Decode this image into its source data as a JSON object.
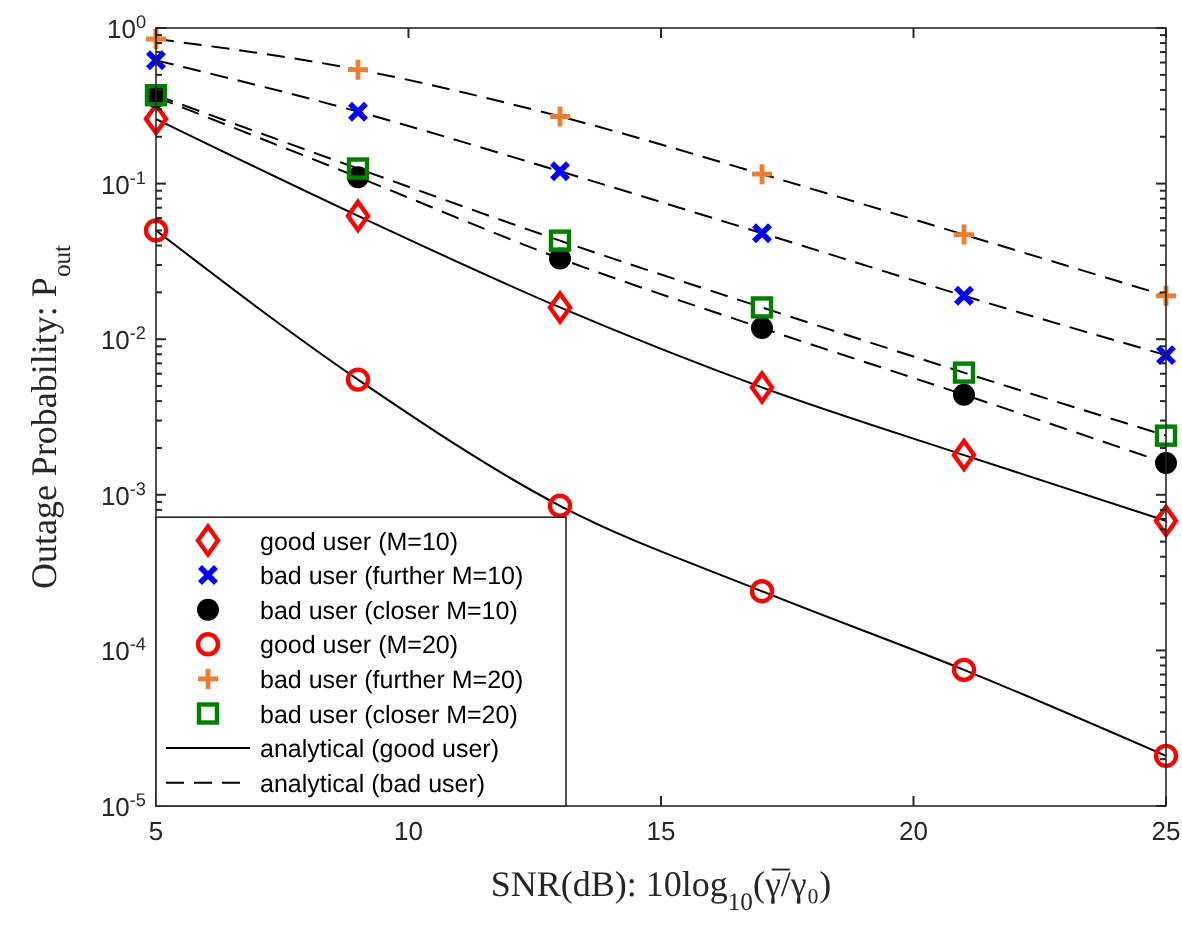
{
  "chart_data": {
    "type": "scatter",
    "xlabel": "SNR(dB): 10log$_{10}$(γ̅/γ₀)",
    "ylabel": "Outage Probability: P$_{out}$",
    "log": "y",
    "grid": false,
    "legend": "bottom left",
    "x": [
      5,
      9,
      13,
      17,
      21,
      25
    ],
    "xlim": [
      5,
      25
    ],
    "xticks": [
      5,
      10,
      15,
      20,
      25
    ],
    "ylim": [
      1e-05,
      1
    ],
    "yticks": [
      {
        "value": 1e-05,
        "label": "10$^{-5}$"
      },
      {
        "value": 2e-05,
        "label": null
      },
      {
        "value": 3e-05,
        "label": null
      },
      {
        "value": 4e-05,
        "label": null
      },
      {
        "value": 5e-05,
        "label": null
      },
      {
        "value": 6e-05,
        "label": null
      },
      {
        "value": 7e-05,
        "label": null
      },
      {
        "value": 8e-05,
        "label": null
      },
      {
        "value": 9e-05,
        "label": null
      },
      {
        "value": 0.0001,
        "label": "10$^{-4}$"
      },
      {
        "value": 0.0002,
        "label": null
      },
      {
        "value": 0.0003,
        "label": null
      },
      {
        "value": 0.0004,
        "label": null
      },
      {
        "value": 0.0005,
        "label": null
      },
      {
        "value": 0.0006,
        "label": null
      },
      {
        "value": 0.0007,
        "label": null
      },
      {
        "value": 0.0008,
        "label": null
      },
      {
        "value": 0.0009,
        "label": null
      },
      {
        "value": 0.001,
        "label": "10$^{-3}$"
      },
      {
        "value": 0.002,
        "label": null
      },
      {
        "value": 0.003,
        "label": null
      },
      {
        "value": 0.004,
        "label": null
      },
      {
        "value": 0.005,
        "label": null
      },
      {
        "value": 0.006,
        "label": null
      },
      {
        "value": 0.007,
        "label": null
      },
      {
        "value": 0.008,
        "label": null
      },
      {
        "value": 0.009,
        "label": null
      },
      {
        "value": 0.01,
        "label": "10$^{-2}$"
      },
      {
        "value": 0.02,
        "label": null
      },
      {
        "value": 0.03,
        "label": null
      },
      {
        "value": 0.04,
        "label": null
      },
      {
        "value": 0.05,
        "label": null
      },
      {
        "value": 0.06,
        "label": null
      },
      {
        "value": 0.07,
        "label": null
      },
      {
        "value": 0.08,
        "label": null
      },
      {
        "value": 0.09,
        "label": null
      },
      {
        "value": 0.1,
        "label": "10$^{-1}$"
      },
      {
        "value": 0.2,
        "label": null
      },
      {
        "value": 0.3,
        "label": null
      },
      {
        "value": 0.4,
        "label": null
      },
      {
        "value": 0.5,
        "label": null
      },
      {
        "value": 0.6,
        "label": null
      },
      {
        "value": 0.7,
        "label": null
      },
      {
        "value": 0.8,
        "label": null
      },
      {
        "value": 0.9,
        "label": null
      },
      {
        "value": 1,
        "label": "10$^{0}$"
      }
    ],
    "series": [
      {
        "name": "good user (M=10)",
        "color": "#ff0000",
        "marker": "diamond",
        "values": [
          0.26,
          0.062,
          0.016,
          0.0049,
          0.0018,
          0.00068
        ]
      },
      {
        "name": "bad user (further M=10)",
        "color": "#0000ff",
        "marker": "x",
        "values": [
          0.62,
          0.29,
          0.12,
          0.048,
          0.019,
          0.0079
        ]
      },
      {
        "name": "bad user (closer M=10)",
        "color": "#000000",
        "marker": "filled-circle",
        "values": [
          0.36,
          0.11,
          0.033,
          0.0118,
          0.0044,
          0.0016
        ]
      },
      {
        "name": "good user (M=20)",
        "color": "#ff0000",
        "marker": "circle",
        "values": [
          0.05,
          0.0055,
          0.00085,
          0.00024,
          7.5e-05,
          2.1e-05
        ]
      },
      {
        "name": "bad user (further M=20)",
        "color": "#ed7d31",
        "marker": "cross",
        "values": [
          0.85,
          0.54,
          0.27,
          0.115,
          0.047,
          0.019
        ]
      },
      {
        "name": "bad user (closer M=20)",
        "color": "#008000",
        "marker": "square",
        "values": [
          0.37,
          0.125,
          0.043,
          0.016,
          0.0061,
          0.0024
        ]
      },
      {
        "type": "line",
        "line_style": "solid",
        "color": "#000000",
        "marker": "none",
        "name": "analytical (good user)",
        "values": [
          0.26,
          0.062,
          0.016,
          0.0049,
          0.0018,
          0.00068
        ]
      },
      {
        "type": "line",
        "line_style": "solid",
        "color": "#000000",
        "marker": "none",
        "values": [
          0.05,
          0.0055,
          0.00085,
          0.00024,
          7.5e-05,
          2.1e-05
        ]
      },
      {
        "type": "line",
        "line_style": "dashed",
        "color": "#000000",
        "marker": "none",
        "name": "analytical (bad user)",
        "values": [
          0.62,
          0.29,
          0.12,
          0.048,
          0.019,
          0.0079
        ]
      },
      {
        "type": "line",
        "line_style": "dashed",
        "color": "#000000",
        "marker": "none",
        "values": [
          0.36,
          0.11,
          0.033,
          0.0118,
          0.0044,
          0.0016
        ]
      },
      {
        "type": "line",
        "line_style": "dashed",
        "color": "#000000",
        "marker": "none",
        "values": [
          0.85,
          0.54,
          0.27,
          0.115,
          0.047,
          0.019
        ]
      },
      {
        "type": "line",
        "line_style": "dashed",
        "color": "#000000",
        "marker": "none",
        "values": [
          0.37,
          0.125,
          0.043,
          0.016,
          0.0061,
          0.0024
        ]
      }
    ]
  }
}
